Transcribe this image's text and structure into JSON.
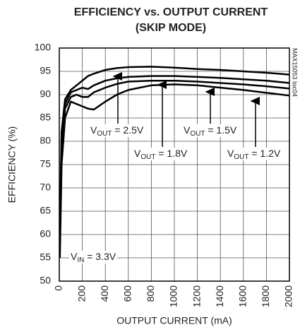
{
  "chart_data": {
    "type": "line",
    "title": [
      "EFFICIENCY vs. OUTPUT CURRENT",
      "(SKIP MODE)"
    ],
    "xlabel": "OUTPUT CURRENT (mA)",
    "ylabel": "EFFICIENCY (%)",
    "side_note": "MAX15053 toc04",
    "x": [
      5,
      20,
      50,
      100,
      150,
      200,
      250,
      300,
      400,
      500,
      600,
      800,
      1000,
      1200,
      1400,
      1600,
      1800,
      2000
    ],
    "series": [
      {
        "color": "#000000",
        "values": [
          62,
          82,
          89,
          91,
          92,
          93,
          94,
          94.5,
          95.3,
          95.7,
          95.9,
          96,
          95.8,
          95.5,
          95.3,
          95,
          94.7,
          94.3
        ]
      },
      {
        "color": "#000000",
        "values": [
          60,
          80,
          88,
          90.5,
          91,
          91.5,
          91.2,
          92,
          93,
          93.5,
          93.8,
          94,
          94,
          93.8,
          93.6,
          93.3,
          93,
          92.5
        ]
      },
      {
        "color": "#000000",
        "values": [
          58,
          78,
          87,
          89.5,
          90,
          89.5,
          89.5,
          90.5,
          91.5,
          92.3,
          92.8,
          93,
          93,
          92.8,
          92.5,
          92.2,
          91.8,
          91.3
        ]
      },
      {
        "color": "#000000",
        "values": [
          55,
          75,
          85,
          88.5,
          88,
          87.5,
          87,
          86.8,
          88.5,
          90,
          91,
          92,
          92.2,
          92,
          91.5,
          91,
          90.4,
          89.8
        ]
      }
    ],
    "annotations": [
      [
        "V",
        "OUT",
        " = 2.5V"
      ],
      [
        "V",
        "OUT",
        " = 1.8V"
      ],
      [
        "V",
        "OUT",
        " = 1.5V"
      ],
      [
        "V",
        "OUT",
        " = 1.2V"
      ],
      [
        "V",
        "IN",
        " = 3.3V"
      ]
    ],
    "xlim": [
      0,
      2000
    ],
    "xticks": [
      0,
      200,
      400,
      600,
      800,
      1000,
      1200,
      1400,
      1600,
      1800,
      2000
    ],
    "ylim": [
      50,
      100
    ],
    "yticks": [
      50,
      55,
      60,
      65,
      70,
      75,
      80,
      85,
      90,
      95,
      100
    ],
    "grid": true
  }
}
